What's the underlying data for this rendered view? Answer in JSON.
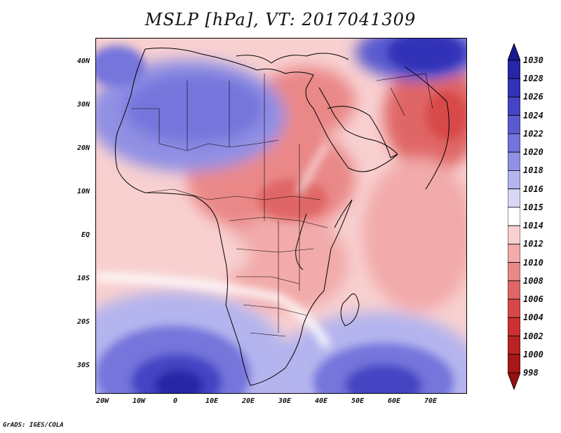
{
  "title": "MSLP [hPa], VT: 2017041309",
  "credit": "GrADS: IGES/COLA",
  "lat_labels": [
    "40N",
    "30N",
    "20N",
    "10N",
    "EQ",
    "10S",
    "20S",
    "30S"
  ],
  "lon_labels": [
    "20W",
    "10W",
    "0",
    "10E",
    "20E",
    "30E",
    "40E",
    "50E",
    "60E",
    "70E"
  ],
  "colorbar": {
    "levels": [
      "1030",
      "1028",
      "1026",
      "1024",
      "1022",
      "1020",
      "1018",
      "1016",
      "1015",
      "1014",
      "1012",
      "1010",
      "1008",
      "1006",
      "1004",
      "1002",
      "1000",
      "998"
    ],
    "colors": [
      "#1a1a8c",
      "#2626a6",
      "#3232b8",
      "#4444c4",
      "#5a5ad0",
      "#7474dc",
      "#9090e4",
      "#b4b4ee",
      "#d8d8f6",
      "#ffffff",
      "#f8d0d0",
      "#f2aaaa",
      "#ea8888",
      "#e06666",
      "#d84848",
      "#cc3030",
      "#bb2222",
      "#a81818",
      "#961010"
    ]
  },
  "colors": {
    "high_deep": "#2626a6",
    "high": "#5a5ad0",
    "high_light": "#b4b4ee",
    "neutral": "#ffffff",
    "low_light": "#f8d0d0",
    "low": "#ea8888",
    "low_deep": "#d84848"
  }
}
